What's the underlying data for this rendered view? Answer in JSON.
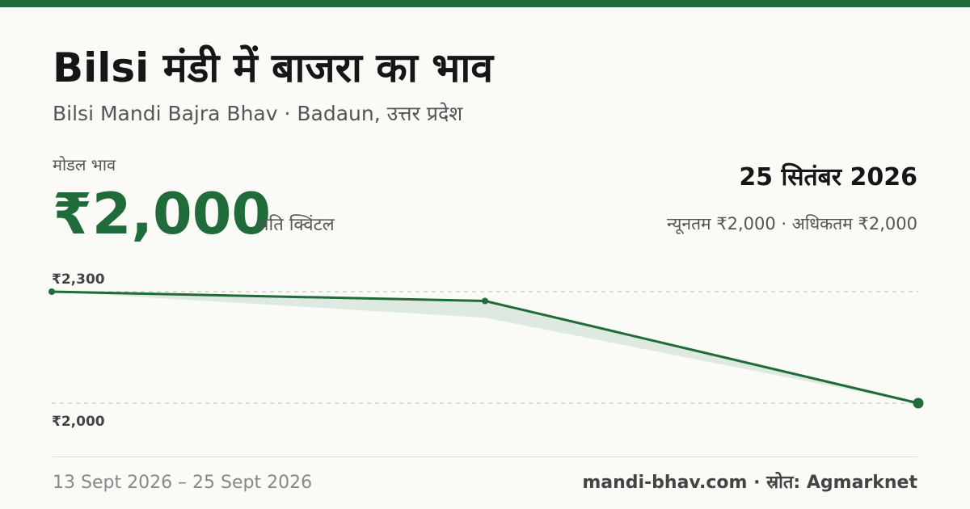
{
  "title": "Bilsi मंडी में बाजरा का भाव",
  "subtitle": "Bilsi Mandi Bajra Bhav · Badaun, उत्तर प्रदेश",
  "modal_label": "मोडल भाव",
  "modal_price": "₹2,000",
  "unit": "प्रति क्विंटल",
  "date": "25 सितंबर 2026",
  "range_text": "न्यूनतम ₹2,000 · अधिकतम ₹2,000",
  "footer": {
    "date_range": "13 Sept 2026 – 25 Sept 2026",
    "source": "mandi-bhav.com · स्रोत: Agmarknet"
  },
  "colors": {
    "accent": "#1f6b3a",
    "band": "#dce9df"
  },
  "chart_data": {
    "type": "line",
    "x": [
      "13 Sept 2026",
      "",
      "25 Sept 2026"
    ],
    "series": [
      {
        "values": [
          2300,
          2275,
          2000
        ]
      }
    ],
    "band": {
      "low": [
        2300,
        2230,
        2000
      ],
      "high": [
        2300,
        2275,
        2000
      ]
    },
    "yticks": [
      "₹2,300",
      "₹2,000"
    ],
    "ytick_values": [
      2300,
      2000
    ],
    "ylim": [
      2000,
      2300
    ],
    "grid": true
  }
}
